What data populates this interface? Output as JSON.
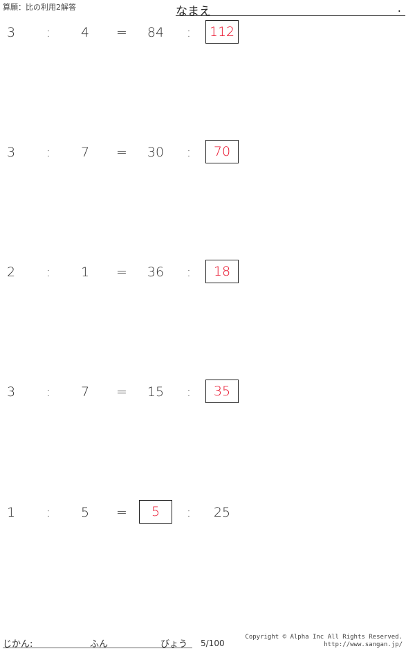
{
  "header": {
    "title": "算願：比の利用2解答",
    "name_label": "なまえ",
    "name_end": "."
  },
  "problems": [
    {
      "slots": [
        "3",
        ":",
        "4",
        "=",
        "84",
        ":",
        "112"
      ],
      "answer_index": 6
    },
    {
      "slots": [
        "3",
        ":",
        "7",
        "=",
        "30",
        ":",
        "70"
      ],
      "answer_index": 6
    },
    {
      "slots": [
        "2",
        ":",
        "1",
        "=",
        "36",
        ":",
        "18"
      ],
      "answer_index": 6
    },
    {
      "slots": [
        "3",
        ":",
        "7",
        "=",
        "15",
        ":",
        "35"
      ],
      "answer_index": 6
    },
    {
      "slots": [
        "1",
        ":",
        "5",
        "=",
        "5",
        ":",
        "25"
      ],
      "answer_index": 4
    }
  ],
  "colors": {
    "answer": "#e8102a"
  },
  "footer": {
    "time_label": "じかん:",
    "min_label": "ふん",
    "sec_label": "びょう",
    "page": "5/100",
    "copyright": "Copyright © Alpha Inc All Rights Reserved.",
    "url": "http://www.sangan.jp/"
  }
}
